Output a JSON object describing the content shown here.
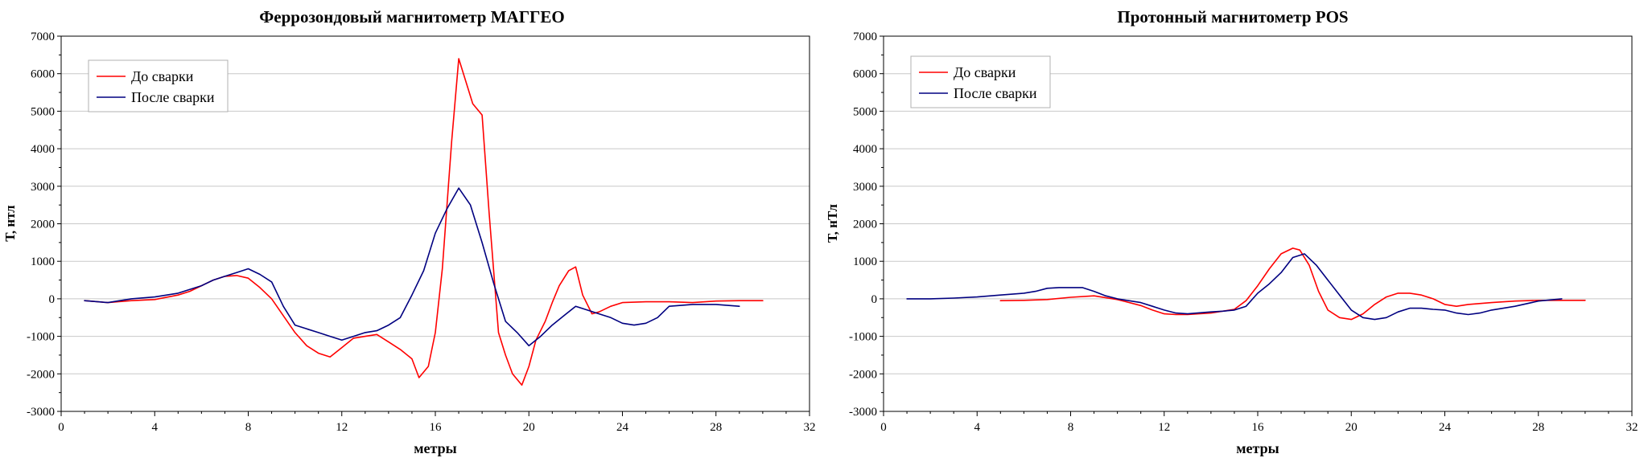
{
  "chart_data": [
    {
      "type": "line",
      "title": "Феррозондовый магнитометр МАГГЕО",
      "xlabel": "метры",
      "ylabel": "Т, нтл",
      "xlim": [
        0,
        32
      ],
      "ylim": [
        -3000,
        7000
      ],
      "x_ticks": [
        "0",
        "4",
        "8",
        "12",
        "16",
        "20",
        "24",
        "28",
        "32"
      ],
      "y_ticks": [
        "-3000",
        "-2000",
        "-1000",
        "0",
        "1000",
        "2000",
        "3000",
        "4000",
        "5000",
        "6000",
        "7000"
      ],
      "grid": true,
      "legend_position": "top-left",
      "series": [
        {
          "name": "До сварки",
          "color": "#ff0000",
          "x": [
            1,
            2,
            3,
            4,
            5,
            5.5,
            6,
            6.5,
            7,
            7.5,
            8,
            8.5,
            9,
            9.5,
            10,
            10.5,
            11,
            11.5,
            12,
            12.5,
            13,
            13.5,
            14,
            14.5,
            15,
            15.3,
            15.7,
            16,
            16.3,
            16.7,
            17,
            17.3,
            17.6,
            18,
            18.3,
            18.7,
            19,
            19.3,
            19.7,
            20,
            20.3,
            20.7,
            21,
            21.3,
            21.7,
            22,
            22.3,
            22.7,
            23,
            23.5,
            24,
            25,
            26,
            27,
            28,
            29,
            30
          ],
          "y": [
            -50,
            -100,
            -50,
            -20,
            100,
            200,
            350,
            500,
            600,
            620,
            550,
            300,
            0,
            -450,
            -900,
            -1250,
            -1450,
            -1550,
            -1300,
            -1050,
            -1000,
            -950,
            -1150,
            -1350,
            -1600,
            -2100,
            -1800,
            -900,
            800,
            4200,
            6400,
            5800,
            5200,
            4900,
            2300,
            -900,
            -1500,
            -2000,
            -2300,
            -1800,
            -1100,
            -600,
            -100,
            350,
            750,
            850,
            100,
            -400,
            -350,
            -200,
            -100,
            -80,
            -80,
            -100,
            -60,
            -50,
            -50
          ]
        },
        {
          "name": "После сварки",
          "color": "#000080",
          "x": [
            1,
            2,
            3,
            4,
            5,
            5.5,
            6,
            6.5,
            7,
            7.5,
            8,
            8.5,
            9,
            9.5,
            10,
            10.5,
            11,
            11.5,
            12,
            12.5,
            13,
            13.5,
            14,
            14.5,
            15,
            15.5,
            16,
            16.5,
            17,
            17.5,
            18,
            18.5,
            19,
            19.5,
            20,
            20.5,
            21,
            21.5,
            22,
            22.5,
            23,
            23.5,
            24,
            24.5,
            25,
            25.5,
            26,
            27,
            28,
            29
          ],
          "y": [
            -50,
            -100,
            0,
            50,
            150,
            250,
            350,
            500,
            600,
            700,
            800,
            650,
            450,
            -200,
            -700,
            -800,
            -900,
            -1000,
            -1100,
            -1000,
            -900,
            -850,
            -700,
            -500,
            100,
            750,
            1750,
            2400,
            2950,
            2500,
            1500,
            400,
            -600,
            -900,
            -1250,
            -1000,
            -700,
            -450,
            -200,
            -300,
            -400,
            -500,
            -650,
            -700,
            -650,
            -500,
            -200,
            -150,
            -150,
            -200
          ]
        }
      ]
    },
    {
      "type": "line",
      "title": "Протонный магнитометр POS",
      "xlabel": "метры",
      "ylabel": "Т, нТл",
      "xlim": [
        0,
        32
      ],
      "ylim": [
        -3000,
        7000
      ],
      "x_ticks": [
        "0",
        "4",
        "8",
        "12",
        "16",
        "20",
        "24",
        "28",
        "32"
      ],
      "y_ticks": [
        "-3000",
        "-2000",
        "-1000",
        "0",
        "1000",
        "2000",
        "3000",
        "4000",
        "5000",
        "6000",
        "7000"
      ],
      "grid": true,
      "legend_position": "top-left",
      "series": [
        {
          "name": "До сварки",
          "color": "#ff0000",
          "x": [
            5,
            6,
            7,
            8,
            9,
            10,
            11,
            11.5,
            12,
            12.5,
            13,
            14,
            15,
            15.5,
            16,
            16.5,
            17,
            17.5,
            17.8,
            18.2,
            18.6,
            19,
            19.5,
            20,
            20.5,
            21,
            21.5,
            22,
            22.5,
            23,
            23.5,
            24,
            24.5,
            25,
            26,
            27,
            28,
            29,
            30
          ],
          "y": [
            -50,
            -40,
            -20,
            40,
            80,
            -20,
            -180,
            -300,
            -400,
            -420,
            -420,
            -380,
            -280,
            -50,
            350,
            800,
            1200,
            1350,
            1300,
            900,
            200,
            -300,
            -500,
            -550,
            -400,
            -150,
            50,
            150,
            150,
            100,
            0,
            -150,
            -200,
            -150,
            -100,
            -60,
            -40,
            -40,
            -40
          ]
        },
        {
          "name": "После сварки",
          "color": "#000080",
          "x": [
            1,
            2,
            3,
            4,
            5,
            6,
            6.5,
            7,
            7.5,
            8,
            8.5,
            9,
            9.5,
            10,
            11,
            11.5,
            12,
            12.5,
            13,
            14,
            14.5,
            15,
            15.5,
            16,
            16.5,
            17,
            17.5,
            18,
            18.5,
            19,
            19.5,
            20,
            20.5,
            21,
            21.5,
            22,
            22.5,
            23,
            23.5,
            24,
            24.5,
            25,
            25.5,
            26,
            27,
            28,
            29
          ],
          "y": [
            0,
            0,
            20,
            50,
            100,
            150,
            200,
            280,
            300,
            300,
            300,
            200,
            80,
            0,
            -100,
            -200,
            -300,
            -380,
            -400,
            -350,
            -330,
            -300,
            -200,
            150,
            400,
            700,
            1100,
            1200,
            900,
            500,
            100,
            -300,
            -500,
            -550,
            -500,
            -350,
            -250,
            -250,
            -280,
            -300,
            -380,
            -420,
            -380,
            -300,
            -200,
            -60,
            0
          ]
        }
      ]
    }
  ]
}
